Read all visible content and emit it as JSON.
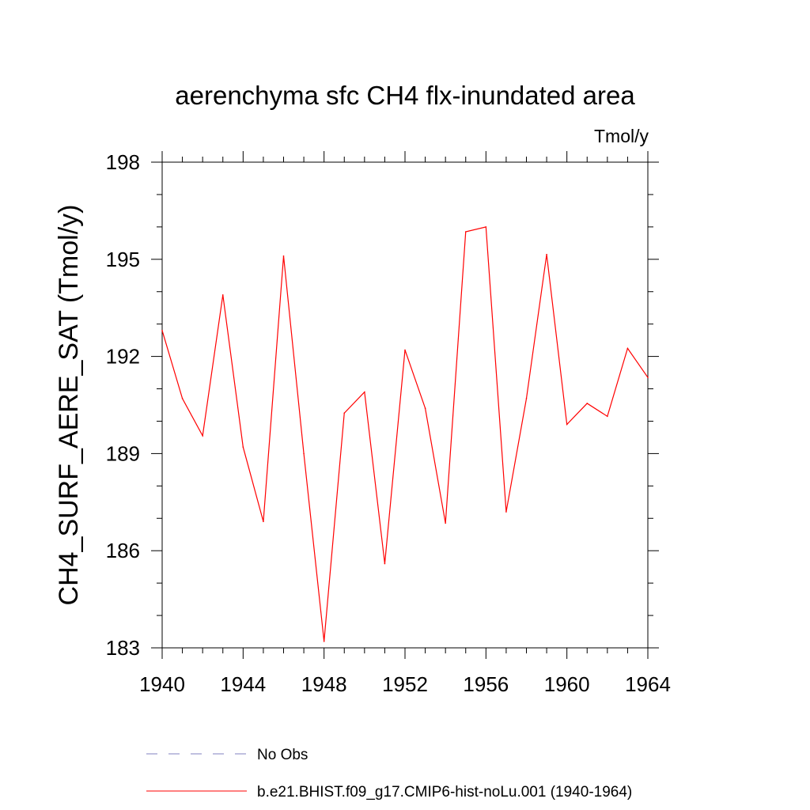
{
  "chart_data": {
    "type": "line",
    "title": "aerenchyma sfc CH4 flx-inundated area",
    "units_label": "Tmol/y",
    "xlabel": "",
    "ylabel": "CH4_SURF_AERE_SAT  (Tmol/y)",
    "xlim": [
      1940,
      1964
    ],
    "ylim": [
      183,
      198
    ],
    "x_ticks": [
      1940,
      1944,
      1948,
      1952,
      1956,
      1960,
      1964
    ],
    "y_ticks": [
      183,
      186,
      189,
      192,
      195,
      198
    ],
    "x_minor_step": 1,
    "y_minor_step": 1,
    "grid": false,
    "legend_position": "bottom",
    "legend": [
      {
        "label": "No Obs",
        "color": "#8080c0",
        "style": "dashed"
      },
      {
        "label": "b.e21.BHIST.f09_g17.CMIP6-hist-noLu.001 (1940-1964)",
        "color": "#ff0000",
        "style": "solid"
      }
    ],
    "series": [
      {
        "name": "b.e21.BHIST.f09_g17.CMIP6-hist-noLu.001 (1940-1964)",
        "color": "#ff0000",
        "x": [
          1940,
          1941,
          1942,
          1943,
          1944,
          1945,
          1946,
          1947,
          1948,
          1949,
          1950,
          1951,
          1952,
          1953,
          1954,
          1955,
          1956,
          1957,
          1958,
          1959,
          1960,
          1961,
          1962,
          1963,
          1964
        ],
        "values": [
          192.8,
          190.7,
          189.55,
          193.9,
          189.2,
          186.9,
          195.1,
          189.0,
          183.2,
          190.25,
          190.9,
          185.6,
          192.2,
          190.4,
          186.85,
          195.85,
          196.0,
          187.2,
          190.7,
          195.15,
          189.9,
          190.55,
          190.15,
          192.25,
          191.35
        ]
      }
    ]
  }
}
